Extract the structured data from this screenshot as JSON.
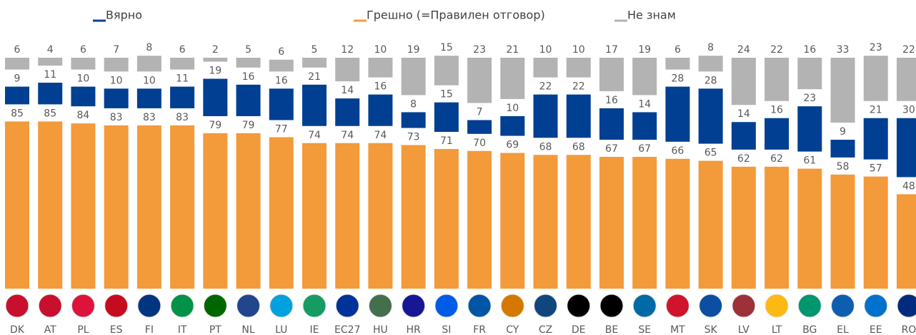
{
  "chart_data": {
    "type": "stacked-bar",
    "categories": [
      "DK",
      "AT",
      "PL",
      "ES",
      "FI",
      "IT",
      "PT",
      "NL",
      "LU",
      "IE",
      "EC27",
      "HU",
      "HR",
      "SI",
      "FR",
      "CY",
      "CZ",
      "DE",
      "BE",
      "SE",
      "MT",
      "SK",
      "LV",
      "LT",
      "BG",
      "EL",
      "EE",
      "RO"
    ],
    "series": [
      {
        "name": "Грешно (=Правилен отговор)",
        "color": "#f39a3a",
        "values": [
          85,
          85,
          84,
          83,
          83,
          83,
          79,
          79,
          77,
          74,
          74,
          74,
          73,
          71,
          70,
          69,
          68,
          68,
          67,
          67,
          66,
          65,
          62,
          62,
          61,
          58,
          57,
          48
        ]
      },
      {
        "name": "Вярно",
        "color": "#003f91",
        "values": [
          9,
          11,
          10,
          10,
          10,
          11,
          19,
          16,
          16,
          21,
          14,
          16,
          8,
          15,
          7,
          10,
          22,
          22,
          16,
          14,
          28,
          28,
          14,
          16,
          23,
          9,
          21,
          30
        ]
      },
      {
        "name": "Не знам",
        "color": "#b3b3b3",
        "values": [
          6,
          4,
          6,
          7,
          8,
          6,
          2,
          5,
          6,
          5,
          12,
          10,
          19,
          15,
          23,
          21,
          10,
          10,
          17,
          19,
          6,
          8,
          24,
          22,
          16,
          33,
          23,
          22
        ]
      }
    ]
  }
}
